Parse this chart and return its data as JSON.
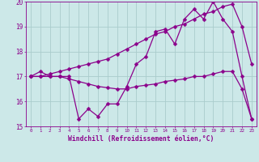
{
  "xlabel": "Windchill (Refroidissement éolien,°C)",
  "bg_color": "#cce8e8",
  "line_color": "#8b008b",
  "grid_color": "#aacccc",
  "xmin": 0,
  "xmax": 23,
  "ymin": 15,
  "ymax": 20,
  "line1_x": [
    0,
    1,
    2,
    3,
    4,
    5,
    6,
    7,
    8,
    9,
    10,
    11,
    12,
    13,
    14,
    15,
    16,
    17,
    18,
    19,
    20,
    21,
    22,
    23
  ],
  "line1_y": [
    17.0,
    17.2,
    17.0,
    17.0,
    17.0,
    15.3,
    15.7,
    15.4,
    15.9,
    15.9,
    16.6,
    17.5,
    17.8,
    18.8,
    18.9,
    18.3,
    19.3,
    19.7,
    19.3,
    20.0,
    19.3,
    18.8,
    17.0,
    15.3
  ],
  "line2_x": [
    0,
    1,
    2,
    3,
    4,
    5,
    6,
    7,
    8,
    9,
    10,
    11,
    12,
    13,
    14,
    15,
    16,
    17,
    18,
    19,
    20,
    21,
    22,
    23
  ],
  "line2_y": [
    17.0,
    17.0,
    17.0,
    17.0,
    16.9,
    16.8,
    16.7,
    16.6,
    16.55,
    16.5,
    16.5,
    16.6,
    16.65,
    16.7,
    16.8,
    16.85,
    16.9,
    17.0,
    17.0,
    17.1,
    17.2,
    17.2,
    16.5,
    15.3
  ],
  "line3_x": [
    0,
    1,
    2,
    3,
    4,
    5,
    6,
    7,
    8,
    9,
    10,
    11,
    12,
    13,
    14,
    15,
    16,
    17,
    18,
    19,
    20,
    21,
    22,
    23
  ],
  "line3_y": [
    17.0,
    17.0,
    17.1,
    17.2,
    17.3,
    17.4,
    17.5,
    17.6,
    17.7,
    17.9,
    18.1,
    18.3,
    18.5,
    18.7,
    18.8,
    19.0,
    19.1,
    19.3,
    19.5,
    19.6,
    19.8,
    19.9,
    19.0,
    17.5
  ]
}
